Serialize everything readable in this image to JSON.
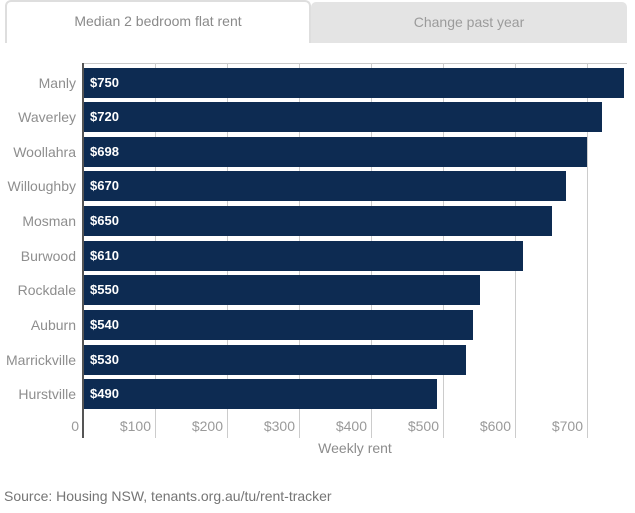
{
  "tabs": [
    {
      "label": "Median 2 bedroom flat rent",
      "active": true
    },
    {
      "label": "Change past year",
      "active": false
    }
  ],
  "chart_data": {
    "type": "bar",
    "orientation": "horizontal",
    "categories": [
      "Manly",
      "Waverley",
      "Woollahra",
      "Willoughby",
      "Mosman",
      "Burwood",
      "Rockdale",
      "Auburn",
      "Marrickville",
      "Hurstville"
    ],
    "values": [
      750,
      720,
      698,
      670,
      650,
      610,
      550,
      540,
      530,
      490
    ],
    "value_labels": [
      "$750",
      "$720",
      "$698",
      "$670",
      "$650",
      "$610",
      "$550",
      "$540",
      "$530",
      "$490"
    ],
    "x_ticks": [
      {
        "value": 0,
        "label": "0"
      },
      {
        "value": 100,
        "label": "$100"
      },
      {
        "value": 200,
        "label": "$200"
      },
      {
        "value": 300,
        "label": "$300"
      },
      {
        "value": 400,
        "label": "$400"
      },
      {
        "value": 500,
        "label": "$500"
      },
      {
        "value": 600,
        "label": "$600"
      },
      {
        "value": 700,
        "label": "$700"
      }
    ],
    "xlim": [
      0,
      755
    ],
    "xlabel": "Weekly rent",
    "grid": true,
    "legend": "none",
    "bar_color": "#0d2b52"
  },
  "source": "Source: Housing NSW, tenants.org.au/tu/rent-tracker",
  "colors": {
    "bar": "#0d2b52",
    "inactive_tab_bg": "#e4e4e4",
    "gridline": "#cccccc",
    "axis_line": "#555555",
    "category_label": "#8e8e8e",
    "tick_label": "#9a9a9a",
    "source_text": "#757575"
  }
}
